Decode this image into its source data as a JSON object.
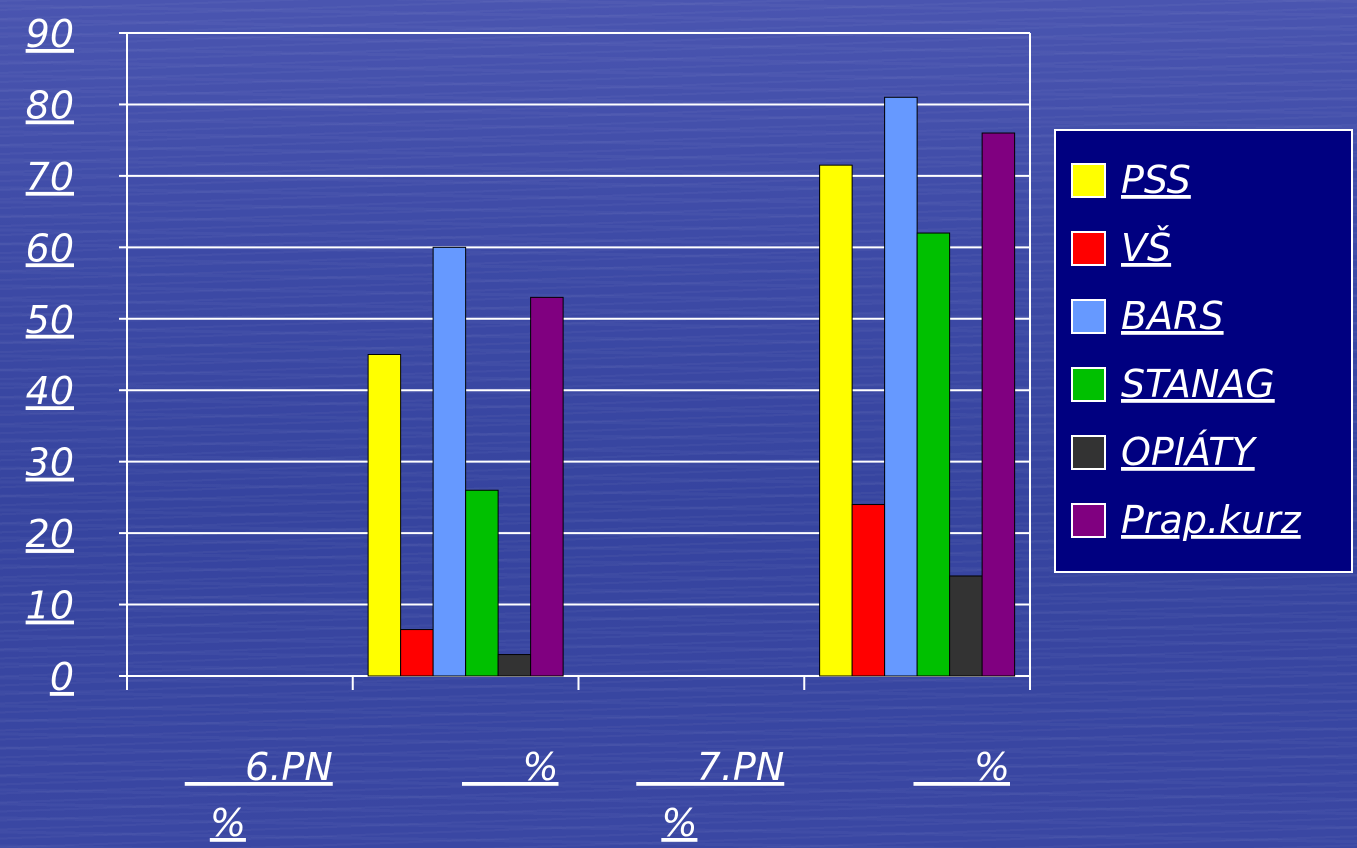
{
  "chart_data": {
    "type": "bar",
    "categories": [
      "6.PN %",
      "%",
      "7.PN %",
      "%"
    ],
    "series": [
      {
        "name": "PSS",
        "color": "#ffff00",
        "values": [
          null,
          45,
          null,
          71.5
        ]
      },
      {
        "name": "VŠ",
        "color": "#ff0000",
        "values": [
          null,
          6.5,
          null,
          24
        ]
      },
      {
        "name": "BARS",
        "color": "#6699ff",
        "values": [
          null,
          60,
          null,
          81
        ]
      },
      {
        "name": "STANAG",
        "color": "#00c000",
        "values": [
          null,
          26,
          null,
          62
        ]
      },
      {
        "name": "OPIÁTY",
        "color": "#333333",
        "values": [
          null,
          3,
          null,
          14
        ]
      },
      {
        "name": "Prap.kurz",
        "color": "#800080",
        "values": [
          null,
          53,
          null,
          76
        ]
      }
    ],
    "ylim": [
      0,
      90
    ],
    "yticks": [
      "0",
      "10",
      "20",
      "30",
      "40",
      "50",
      "60",
      "70",
      "80",
      "90"
    ],
    "grid": true,
    "legend_position": "right",
    "legend_background": "#000080"
  }
}
